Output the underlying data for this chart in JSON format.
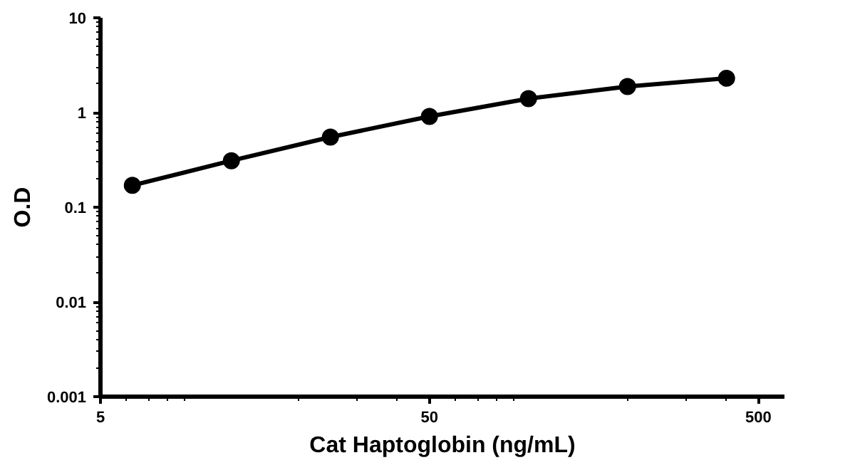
{
  "chart_data": {
    "type": "line",
    "xlabel": "Cat Haptoglobin (ng/mL)",
    "ylabel": "O.D",
    "log": "xy",
    "x": [
      6.25,
      12.5,
      25,
      50,
      100,
      200,
      400
    ],
    "series": [
      {
        "color": "#000000",
        "values": [
          0.17,
          0.31,
          0.55,
          0.91,
          1.4,
          1.88,
          2.3
        ]
      }
    ],
    "xlim": [
      5,
      600
    ],
    "xticks": [
      5,
      50,
      500
    ],
    "ylim": [
      0.001,
      10
    ],
    "yticks": [
      0.001,
      0.01,
      0.1,
      1,
      10
    ],
    "grid": false,
    "marker": "circle",
    "line_style": "solid"
  }
}
